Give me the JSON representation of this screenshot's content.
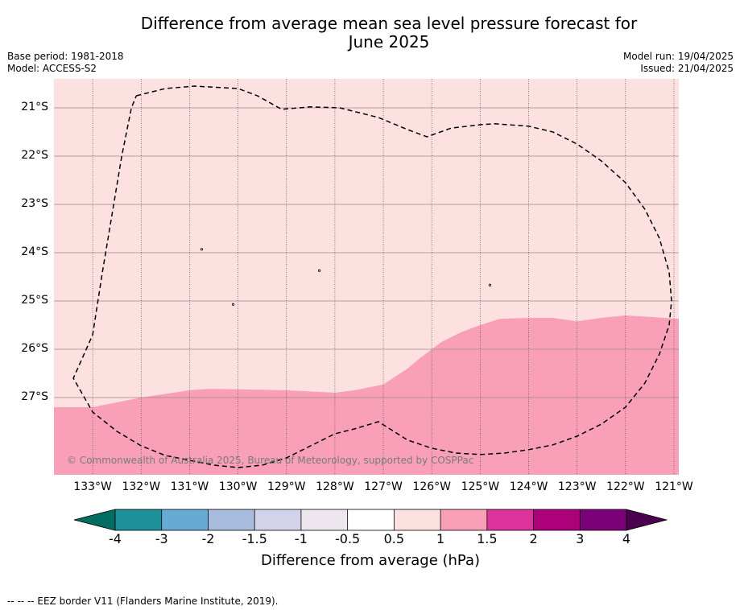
{
  "title": {
    "line1": "Difference from average mean sea level pressure forecast for",
    "line2": "June 2025"
  },
  "meta": {
    "base_period": "Base period: 1981-2018",
    "model": "Model: ACCESS-S2",
    "model_run": "Model run: 19/04/2025",
    "issued": "Issued: 21/04/2025"
  },
  "copyright": "© Commonwealth of Australia 2025, Bureau of Meteorology, supported by COSPPac",
  "footer": "--  --  -- EEZ border V11 (Flanders Marine Institute, 2019).",
  "map": {
    "lon_range": [
      -133.8,
      -120.9
    ],
    "lat_range": [
      -28.6,
      -20.4
    ],
    "lat_ticks": [
      {
        "value": -21,
        "label": "21°S"
      },
      {
        "value": -22,
        "label": "22°S"
      },
      {
        "value": -23,
        "label": "23°S"
      },
      {
        "value": -24,
        "label": "24°S"
      },
      {
        "value": -25,
        "label": "25°S"
      },
      {
        "value": -26,
        "label": "26°S"
      },
      {
        "value": -27,
        "label": "27°S"
      }
    ],
    "lon_ticks": [
      {
        "value": -133,
        "label": "133°W"
      },
      {
        "value": -132,
        "label": "132°W"
      },
      {
        "value": -131,
        "label": "131°W"
      },
      {
        "value": -130,
        "label": "130°W"
      },
      {
        "value": -129,
        "label": "129°W"
      },
      {
        "value": -128,
        "label": "128°W"
      },
      {
        "value": -127,
        "label": "127°W"
      },
      {
        "value": -126,
        "label": "126°W"
      },
      {
        "value": -125,
        "label": "125°W"
      },
      {
        "value": -124,
        "label": "124°W"
      },
      {
        "value": -123,
        "label": "123°W"
      },
      {
        "value": -122,
        "label": "122°W"
      },
      {
        "value": -121,
        "label": "121°W"
      }
    ],
    "fields": [
      {
        "range": "0.5 to 1",
        "color": "#fde0e0"
      },
      {
        "range": "1 to 1.5",
        "color": "#f99fb7"
      }
    ],
    "boundary_1_to_1_5": [
      [
        -133.8,
        -27.2
      ],
      [
        -133.0,
        -27.2
      ],
      [
        -132.0,
        -27.0
      ],
      [
        -131.0,
        -26.85
      ],
      [
        -130.6,
        -26.82
      ],
      [
        -130.0,
        -26.83
      ],
      [
        -129.0,
        -26.85
      ],
      [
        -128.0,
        -26.9
      ],
      [
        -127.6,
        -26.85
      ],
      [
        -127.0,
        -26.73
      ],
      [
        -126.5,
        -26.4
      ],
      [
        -126.2,
        -26.15
      ],
      [
        -125.8,
        -25.85
      ],
      [
        -125.4,
        -25.65
      ],
      [
        -125.0,
        -25.5
      ],
      [
        -124.6,
        -25.37
      ],
      [
        -124.0,
        -25.35
      ],
      [
        -123.5,
        -25.35
      ],
      [
        -123.0,
        -25.42
      ],
      [
        -122.5,
        -25.35
      ],
      [
        -122.0,
        -25.3
      ],
      [
        -121.5,
        -25.33
      ],
      [
        -120.9,
        -25.37
      ]
    ],
    "eez_border": [
      [
        -132.1,
        -20.75
      ],
      [
        -131.5,
        -20.6
      ],
      [
        -130.9,
        -20.55
      ],
      [
        -130.0,
        -20.6
      ],
      [
        -129.6,
        -20.75
      ],
      [
        -129.1,
        -21.03
      ],
      [
        -128.5,
        -20.98
      ],
      [
        -127.9,
        -21.0
      ],
      [
        -127.1,
        -21.2
      ],
      [
        -126.5,
        -21.45
      ],
      [
        -126.1,
        -21.6
      ],
      [
        -125.6,
        -21.42
      ],
      [
        -125.0,
        -21.35
      ],
      [
        -124.7,
        -21.33
      ],
      [
        -124.0,
        -21.38
      ],
      [
        -123.5,
        -21.5
      ],
      [
        -123.0,
        -21.75
      ],
      [
        -122.5,
        -22.1
      ],
      [
        -122.0,
        -22.55
      ],
      [
        -121.6,
        -23.1
      ],
      [
        -121.3,
        -23.7
      ],
      [
        -121.1,
        -24.4
      ],
      [
        -121.05,
        -25.0
      ],
      [
        -121.1,
        -25.5
      ],
      [
        -121.3,
        -26.1
      ],
      [
        -121.6,
        -26.7
      ],
      [
        -122.0,
        -27.2
      ],
      [
        -122.5,
        -27.55
      ],
      [
        -123.0,
        -27.8
      ],
      [
        -123.5,
        -27.98
      ],
      [
        -124.0,
        -28.08
      ],
      [
        -124.5,
        -28.15
      ],
      [
        -125.0,
        -28.18
      ],
      [
        -125.5,
        -28.15
      ],
      [
        -126.0,
        -28.05
      ],
      [
        -126.5,
        -27.88
      ],
      [
        -127.1,
        -27.5
      ],
      [
        -127.6,
        -27.65
      ],
      [
        -128.0,
        -27.75
      ],
      [
        -128.5,
        -28.0
      ],
      [
        -129.0,
        -28.25
      ],
      [
        -129.5,
        -28.4
      ],
      [
        -130.0,
        -28.45
      ],
      [
        -130.5,
        -28.4
      ],
      [
        -131.0,
        -28.3
      ],
      [
        -131.5,
        -28.2
      ],
      [
        -132.0,
        -28.0
      ],
      [
        -132.5,
        -27.7
      ],
      [
        -133.0,
        -27.3
      ],
      [
        -133.4,
        -26.6
      ],
      [
        -133.0,
        -25.7
      ],
      [
        -132.8,
        -24.4
      ],
      [
        -132.6,
        -23.2
      ],
      [
        -132.4,
        -22.0
      ],
      [
        -132.2,
        -21.0
      ],
      [
        -132.1,
        -20.75
      ]
    ],
    "islands": [
      {
        "lon": -130.75,
        "lat": -23.93
      },
      {
        "lon": -128.32,
        "lat": -24.37
      },
      {
        "lon": -130.1,
        "lat": -25.07
      },
      {
        "lon": -124.8,
        "lat": -24.67
      }
    ]
  },
  "colorbar": {
    "title": "Difference from average (hPa)",
    "under_color": "#006d63",
    "over_color": "#4a004f",
    "colors": [
      "#1e9099",
      "#67aad3",
      "#a7bbdd",
      "#d2d2ea",
      "#ede6ef",
      "#ffffff",
      "#fde0e0",
      "#f99fb7",
      "#dc339c",
      "#ad0179",
      "#7a0177"
    ],
    "labels": [
      "-4",
      "-3",
      "-2",
      "-1.5",
      "-1",
      "-0.5",
      "0.5",
      "1",
      "1.5",
      "2",
      "3",
      "4"
    ]
  }
}
